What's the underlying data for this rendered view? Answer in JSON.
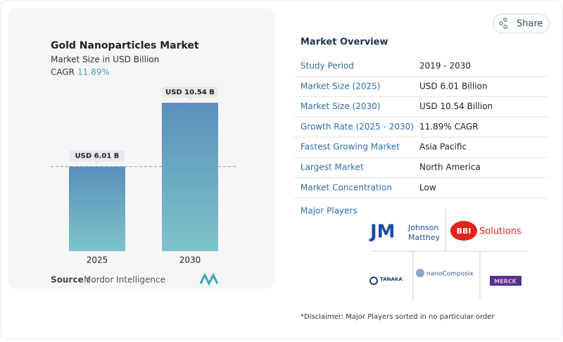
{
  "chart_data": {
    "type": "bar",
    "title": "Gold Nanoparticles Market",
    "subtitle": "Market Size in USD Billion",
    "cagr_label": "CAGR",
    "cagr_value": "11.89%",
    "categories": [
      "2025",
      "2030"
    ],
    "values": [
      6.01,
      10.54
    ],
    "value_labels": [
      "USD 6.01 B",
      "USD 10.54 B"
    ],
    "source_label": "Source :",
    "source": "Mordor Intelligence"
  },
  "share": "Share",
  "overview": {
    "title": "Market Overview",
    "rows": [
      [
        "Study Period",
        "2019 - 2030"
      ],
      [
        "Market Size (2025)",
        "USD 6.01 Billion"
      ],
      [
        "Market Size (2030)",
        "USD 10.54 Billion"
      ],
      [
        "Growth Rate (2025 - 2030)",
        "11.89% CAGR"
      ],
      [
        "Fastest Growing Market",
        "Asia Pacific"
      ],
      [
        "Largest Market",
        "North America"
      ],
      [
        "Market Concentration",
        "Low"
      ]
    ]
  },
  "players": {
    "title": "Major Players",
    "johnson_matthey": {
      "mark": "JM",
      "line1": "Johnson",
      "line2": "Matthey"
    },
    "bbi": {
      "mark": "BBI",
      "name": "Solutions"
    },
    "tanaka": "TANAKA",
    "nanocomposix": "nanoComposix",
    "merck": "MERCK"
  },
  "disclaimer": "*Disclaimer: Major Players sorted in no particular order"
}
